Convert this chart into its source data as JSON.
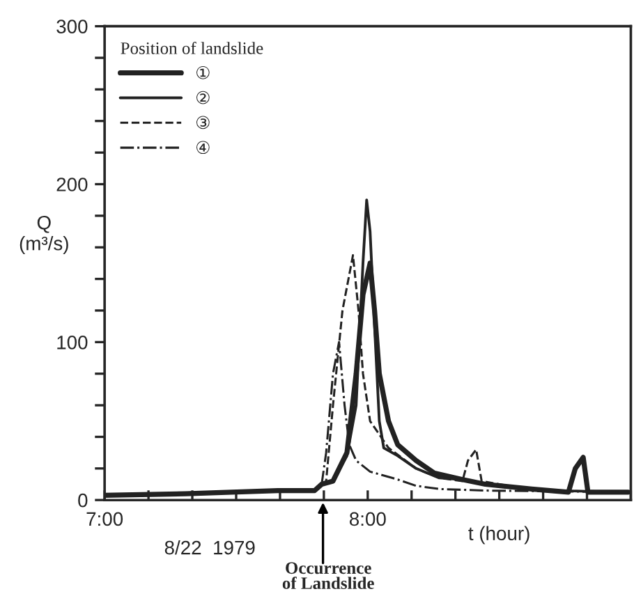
{
  "chart_data": {
    "type": "line",
    "xlabel": "t (hour)",
    "ylabel": "Q\n(m³/s)",
    "legend_title": "Position of landslide",
    "legend": "top left",
    "grid": false,
    "marker": "none",
    "xlim": [
      7,
      9
    ],
    "ylim": [
      0,
      300
    ],
    "xticks": [
      {
        "value": 7,
        "label": "7:00"
      },
      {
        "value": 7.1667,
        "label": null
      },
      {
        "value": 7.3333,
        "label": null
      },
      {
        "value": 7.5,
        "label": null
      },
      {
        "value": 7.6667,
        "label": null
      },
      {
        "value": 7.8333,
        "label": null
      },
      {
        "value": 8,
        "label": "8:00"
      },
      {
        "value": 8.1667,
        "label": null
      },
      {
        "value": 8.3333,
        "label": null
      },
      {
        "value": 8.5,
        "label": null
      },
      {
        "value": 8.6667,
        "label": null
      },
      {
        "value": 8.8333,
        "label": null
      },
      {
        "value": 9,
        "label": null
      }
    ],
    "yticks": [
      0,
      {
        "value": 20,
        "label": null
      },
      {
        "value": 40,
        "label": null
      },
      {
        "value": 60,
        "label": null
      },
      {
        "value": 80,
        "label": null
      },
      100,
      {
        "value": 120,
        "label": null
      },
      {
        "value": 140,
        "label": null
      },
      {
        "value": 160,
        "label": null
      },
      {
        "value": 180,
        "label": null
      },
      200,
      {
        "value": 220,
        "label": null
      },
      {
        "value": 240,
        "label": null
      },
      {
        "value": 260,
        "label": null
      },
      {
        "value": 280,
        "label": null
      },
      300
    ],
    "series": [
      {
        "name": "①",
        "color": "#222222",
        "line_style": "solid",
        "x": [
          7.0,
          7.307,
          7.658,
          7.798,
          7.825,
          7.868,
          7.921,
          7.956,
          7.982,
          8.009,
          8.026,
          8.044,
          8.079,
          8.114,
          8.184,
          8.254,
          8.36,
          8.447,
          8.623,
          8.763,
          8.789,
          8.819,
          8.837,
          8.99
        ],
        "values": [
          3,
          4,
          6,
          6,
          10,
          12,
          30,
          80,
          130,
          150,
          120,
          80,
          50,
          35,
          25,
          17,
          13,
          10,
          7,
          5,
          20,
          27,
          5,
          5
        ]
      },
      {
        "name": "②",
        "color": "#222222",
        "line_style": "solid",
        "x": [
          7.825,
          7.868,
          7.921,
          7.956,
          7.982,
          7.996,
          8.009,
          8.026,
          8.044,
          8.061,
          8.114,
          8.184,
          8.272,
          8.36,
          8.447,
          8.623,
          8.711,
          8.99
        ],
        "values": [
          10,
          12,
          28,
          60,
          150,
          190,
          170,
          110,
          50,
          33,
          28,
          20,
          14,
          13,
          10,
          7,
          6,
          5
        ]
      },
      {
        "name": "③",
        "color": "#222222",
        "line_style": "dashed",
        "x": [
          7.825,
          7.842,
          7.868,
          7.904,
          7.944,
          7.965,
          7.982,
          8.009,
          8.079,
          8.184,
          8.272,
          8.36,
          8.381,
          8.412,
          8.433,
          8.535,
          8.711,
          8.99
        ],
        "values": [
          10,
          12,
          60,
          120,
          155,
          120,
          80,
          50,
          33,
          20,
          14,
          12,
          25,
          32,
          12,
          9,
          6,
          5
        ]
      },
      {
        "name": "④",
        "color": "#222222",
        "line_style": "dashdot",
        "x": [
          7.825,
          7.842,
          7.868,
          7.891,
          7.912,
          7.93,
          7.956,
          8.009,
          8.114,
          8.184,
          8.272,
          8.447,
          8.99
        ],
        "values": [
          10,
          30,
          80,
          100,
          60,
          35,
          25,
          18,
          13,
          9,
          7,
          6,
          5
        ]
      }
    ],
    "annotations": [
      "8/22  1979",
      "Occurrence\nof Landslide"
    ]
  }
}
